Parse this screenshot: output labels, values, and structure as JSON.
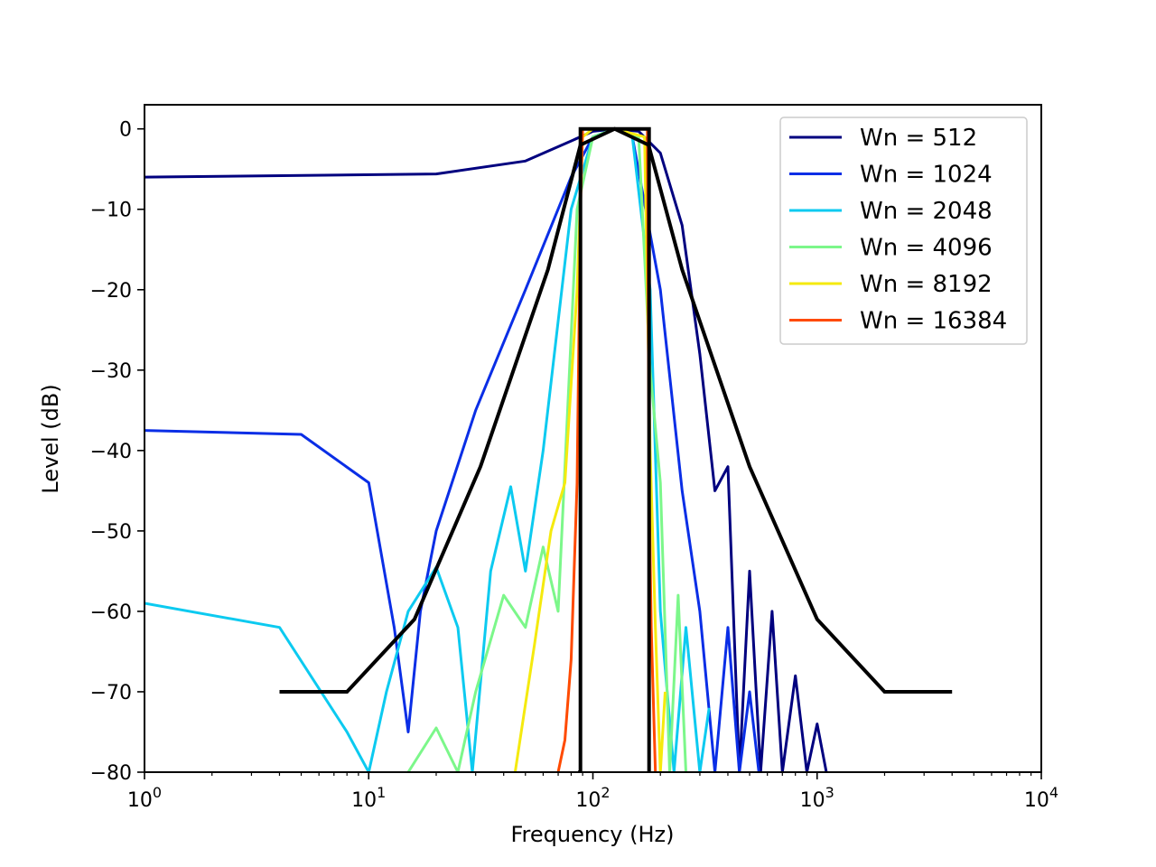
{
  "chart_data": {
    "type": "line",
    "title": "",
    "xlabel": "Frequency (Hz)",
    "ylabel": "Level (dB)",
    "xscale": "log",
    "xlim": [
      1,
      10000
    ],
    "ylim": [
      -80,
      3
    ],
    "grid": false,
    "legend_placement": "top-right",
    "x_ticks": [
      {
        "base": "10",
        "exp": "0"
      },
      {
        "base": "10",
        "exp": "1"
      },
      {
        "base": "10",
        "exp": "2"
      },
      {
        "base": "10",
        "exp": "3"
      },
      {
        "base": "10",
        "exp": "4"
      }
    ],
    "y_ticks": [
      "0",
      "−10",
      "−20",
      "−30",
      "−40",
      "−50",
      "−60",
      "−70",
      "−80"
    ],
    "series": [
      {
        "name": "Wn = 512",
        "color": "#00007f",
        "x": [
          1,
          20,
          50,
          80,
          100,
          125,
          160,
          200,
          250,
          300,
          350,
          400,
          450,
          500,
          560,
          630,
          700,
          800,
          900,
          1000,
          1100
        ],
        "y": [
          -6,
          -5.6,
          -4,
          -1.5,
          -0.3,
          0,
          -0.3,
          -3,
          -12,
          -28,
          -45,
          -42,
          -80,
          -55,
          -80,
          -60,
          -80,
          -68,
          -80,
          -74,
          -80
        ]
      },
      {
        "name": "Wn = 1024",
        "color": "#0a2ee6",
        "x": [
          1,
          5,
          10,
          13,
          15,
          17,
          20,
          30,
          50,
          80,
          100,
          125,
          150,
          200,
          250,
          300,
          350,
          400,
          450,
          500,
          550
        ],
        "y": [
          -37.5,
          -38,
          -44,
          -62,
          -75,
          -60,
          -50,
          -35,
          -20,
          -6,
          -1,
          0,
          -1,
          -20,
          -45,
          -60,
          -80,
          -62,
          -80,
          -70,
          -80
        ]
      },
      {
        "name": "Wn = 2048",
        "color": "#0ccaf0",
        "x": [
          1,
          4,
          8,
          10,
          12,
          15,
          20,
          25,
          29,
          35,
          43,
          50,
          60,
          80,
          100,
          125,
          150,
          180,
          200,
          230,
          260,
          300,
          330
        ],
        "y": [
          -59,
          -62,
          -75,
          -80,
          -70,
          -60,
          -54.5,
          -62,
          -80,
          -55,
          -44.5,
          -55,
          -40,
          -10,
          -1,
          0,
          -1,
          -20,
          -60,
          -80,
          -62,
          -80,
          -72
        ]
      },
      {
        "name": "Wn = 4096",
        "color": "#7cf78a",
        "x": [
          15,
          20,
          25,
          30,
          40,
          50,
          60,
          70,
          85,
          100,
          125,
          160,
          180,
          200,
          220,
          240,
          260
        ],
        "y": [
          -80,
          -74.5,
          -80,
          -70,
          -58,
          -62,
          -52,
          -60,
          -10,
          -1,
          0,
          -1,
          -30,
          -44,
          -80,
          -58,
          -80
        ]
      },
      {
        "name": "Wn = 8192",
        "color": "#f5ea0e",
        "x": [
          45,
          55,
          65,
          75,
          85,
          90,
          100,
          125,
          170,
          180,
          190,
          200,
          210
        ],
        "y": [
          -80,
          -64,
          -50,
          -44,
          -20,
          -1,
          0,
          0,
          -1,
          -40,
          -62,
          -80,
          -70
        ]
      },
      {
        "name": "Wn = 16384",
        "color": "#ff4a00",
        "x": [
          70,
          75,
          80,
          85,
          88,
          90,
          100,
          125,
          175,
          178,
          182,
          190
        ],
        "y": [
          -80,
          -76,
          -66,
          -44,
          -10,
          0,
          0,
          0,
          0,
          -44,
          -62,
          -80
        ]
      }
    ],
    "masks": [
      {
        "color": "#000000",
        "x": [
          4,
          8,
          16,
          31.5,
          63,
          88,
          125,
          177,
          250,
          500,
          1000,
          2000,
          4000
        ],
        "y": [
          -70,
          -70,
          -61,
          -42,
          -17.5,
          -2,
          0,
          -2,
          -17.5,
          -42,
          -61,
          -70,
          -70
        ]
      },
      {
        "color": "#000000",
        "x": [
          86,
          88,
          88,
          178,
          178,
          180
        ],
        "y": [
          -80,
          -80,
          0,
          0,
          -80,
          -80
        ]
      }
    ]
  }
}
